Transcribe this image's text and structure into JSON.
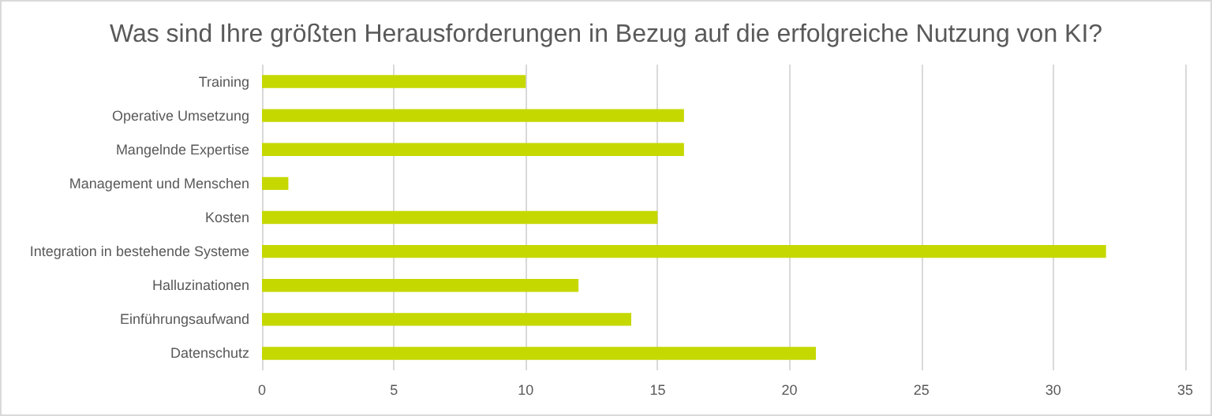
{
  "chart_data": {
    "type": "bar",
    "orientation": "horizontal",
    "title": "Was sind Ihre größten Herausforderungen in Bezug auf die erfolgreiche Nutzung von KI?",
    "categories": [
      "Training",
      "Operative Umsetzung",
      "Mangelnde Expertise",
      "Management und Menschen",
      "Kosten",
      "Integration in bestehende Systeme",
      "Halluzinationen",
      "Einführungsaufwand",
      "Datenschutz"
    ],
    "values": [
      10,
      16,
      16,
      1,
      15,
      32,
      12,
      14,
      21
    ],
    "color": "#c5d800",
    "xlim": [
      0,
      35
    ],
    "xticks": [
      0,
      5,
      10,
      15,
      20,
      25,
      30,
      35
    ],
    "grid": "x"
  }
}
